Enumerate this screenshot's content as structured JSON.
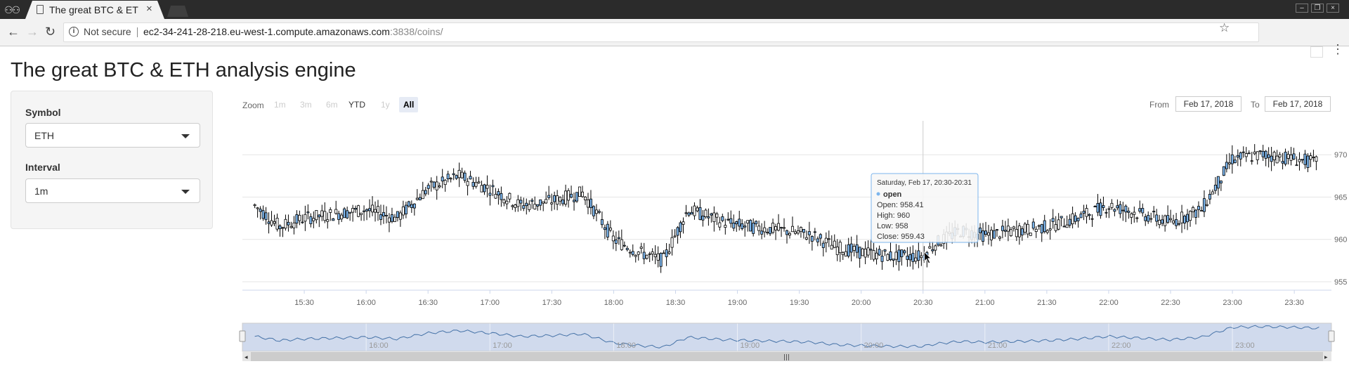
{
  "browser": {
    "tab_title": "The great BTC & ETH analysis engine",
    "security_label": "Not secure",
    "url_host": "ec2-34-241-28-218.eu-west-1.compute.amazonaws.com",
    "url_path": ":3838/coins/"
  },
  "page": {
    "title": "The great BTC & ETH analysis engine"
  },
  "sidebar": {
    "symbol_label": "Symbol",
    "symbol_value": "ETH",
    "interval_label": "Interval",
    "interval_value": "1m"
  },
  "chart_controls": {
    "zoom_label": "Zoom",
    "zoom_buttons": [
      {
        "label": "1m",
        "state": "disabled"
      },
      {
        "label": "3m",
        "state": "disabled"
      },
      {
        "label": "6m",
        "state": "disabled"
      },
      {
        "label": "YTD",
        "state": "enabled"
      },
      {
        "label": "1y",
        "state": "disabled"
      },
      {
        "label": "All",
        "state": "selected"
      }
    ],
    "from_label": "From",
    "from_value": "Feb 17, 2018",
    "to_label": "To",
    "to_value": "Feb 17, 2018"
  },
  "chart_data": {
    "type": "candlestick",
    "series_name": "open",
    "y_ticks": [
      955,
      960,
      965,
      970
    ],
    "ylim": [
      954,
      974
    ],
    "x_ticks": [
      "15:30",
      "16:00",
      "16:30",
      "17:00",
      "17:30",
      "18:00",
      "18:30",
      "19:00",
      "19:30",
      "20:00",
      "20:30",
      "21:00",
      "21:30",
      "22:00",
      "22:30",
      "23:00",
      "23:30"
    ],
    "navigator_ticks": [
      "16:00",
      "17:00",
      "18:00",
      "19:00",
      "20:00",
      "21:00",
      "22:00",
      "23:00"
    ],
    "close_trend": [
      [
        15.1,
        964.0
      ],
      [
        15.3,
        961.5
      ],
      [
        15.5,
        962.5
      ],
      [
        16.0,
        963.5
      ],
      [
        16.25,
        962.5
      ],
      [
        16.5,
        966.0
      ],
      [
        16.75,
        967.5
      ],
      [
        17.0,
        966.0
      ],
      [
        17.25,
        964.0
      ],
      [
        17.5,
        964.5
      ],
      [
        17.75,
        965.5
      ],
      [
        18.0,
        960.0
      ],
      [
        18.2,
        958.5
      ],
      [
        18.4,
        957.5
      ],
      [
        18.6,
        963.5
      ],
      [
        18.9,
        962.0
      ],
      [
        19.1,
        961.5
      ],
      [
        19.4,
        961.0
      ],
      [
        19.6,
        960.5
      ],
      [
        19.8,
        959.0
      ],
      [
        20.0,
        958.5
      ],
      [
        20.25,
        958.0
      ],
      [
        20.5,
        958.0
      ],
      [
        20.6,
        959.5
      ],
      [
        20.8,
        961.0
      ],
      [
        21.0,
        960.5
      ],
      [
        21.25,
        961.0
      ],
      [
        21.5,
        961.5
      ],
      [
        21.75,
        962.5
      ],
      [
        22.0,
        964.0
      ],
      [
        22.25,
        963.0
      ],
      [
        22.5,
        962.0
      ],
      [
        22.75,
        963.5
      ],
      [
        23.0,
        969.5
      ],
      [
        23.25,
        970.0
      ],
      [
        23.5,
        969.5
      ],
      [
        23.7,
        969.0
      ]
    ],
    "tooltip": {
      "header": "Saturday, Feb 17, 20:30-20:31",
      "series": "open",
      "lines": [
        "Open: 958.41",
        "High: 960",
        "Low: 958",
        "Close: 959.43"
      ]
    },
    "colors": {
      "up": "#ffffff",
      "down": "#7cb5ec",
      "line": "#000000",
      "navigator_fill": "#c8d4ea",
      "navigator_line": "#4572a7"
    }
  }
}
